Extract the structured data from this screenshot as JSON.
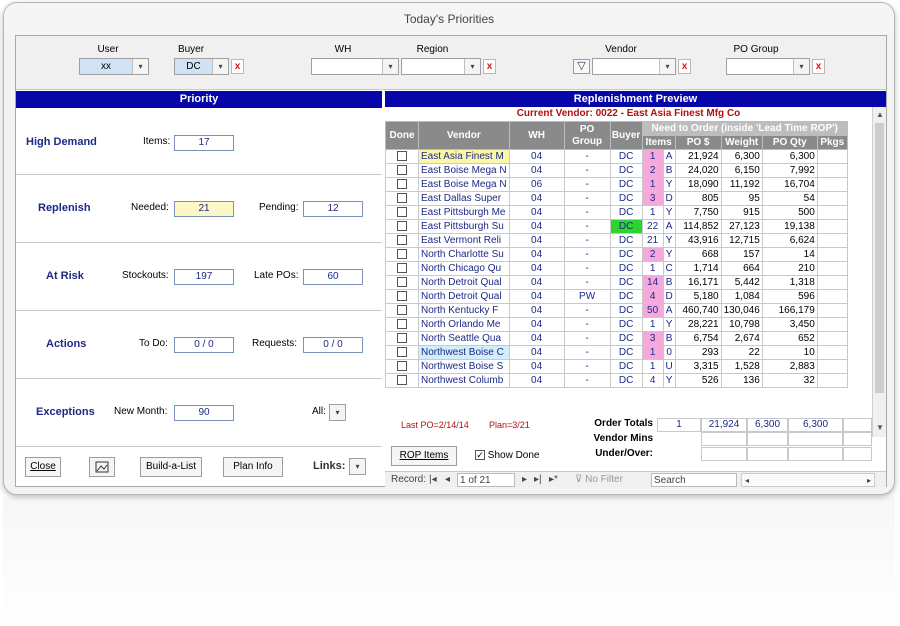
{
  "window": {
    "title": "Today's Priorities"
  },
  "filters": {
    "user": {
      "label": "User",
      "value": "xx"
    },
    "buyer": {
      "label": "Buyer",
      "value": "DC"
    },
    "wh": {
      "label": "WH",
      "value": ""
    },
    "region": {
      "label": "Region",
      "value": ""
    },
    "vendor": {
      "label": "Vendor",
      "value": ""
    },
    "po_group": {
      "label": "PO Group",
      "value": ""
    },
    "clear_glyph": "x",
    "dropdown_glyph": "▾",
    "filter_glyph": "▽"
  },
  "priority": {
    "header": "Priority",
    "high_demand": {
      "name": "High Demand",
      "items_label": "Items:",
      "items_value": "17"
    },
    "replenish": {
      "name": "Replenish",
      "needed_label": "Needed:",
      "needed_value": "21",
      "pending_label": "Pending:",
      "pending_value": "12"
    },
    "at_risk": {
      "name": "At Risk",
      "stockouts_label": "Stockouts:",
      "stockouts_value": "197",
      "late_label": "Late POs:",
      "late_value": "60"
    },
    "actions": {
      "name": "Actions",
      "todo_label": "To Do:",
      "todo_value": "0 / 0",
      "requests_label": "Requests:",
      "requests_value": "0 / 0"
    },
    "exceptions": {
      "name": "Exceptions",
      "newmonth_label": "New Month:",
      "newmonth_value": "90",
      "all_label": "All:"
    }
  },
  "buttons": {
    "close": "Close",
    "build": "Build-a-List",
    "plan": "Plan Info",
    "links": "Links:",
    "rop": "ROP Items",
    "show_done": "Show Done"
  },
  "preview": {
    "header": "Replenishment Preview",
    "current_vendor": "Current Vendor: 0022 - East Asia Finest Mfg Co",
    "columns": {
      "done": "Done",
      "vendor": "Vendor",
      "wh": "WH",
      "po_group": "PO Group",
      "buyer": "Buyer",
      "need_group": "Need to Order (inside 'Lead Time ROP')",
      "items": "Items",
      "po_dollars": "PO $",
      "weight": "Weight",
      "po_qty": "PO Qty",
      "pkgs": "Pkgs"
    },
    "rows": [
      {
        "vendor": "East Asia Finest M",
        "wh": "04",
        "pog": "-",
        "buyer": "DC",
        "items": "1",
        "code": "A",
        "po": "21,924",
        "weight": "6,300",
        "qty": "6,300",
        "highlight": "#fbf7a8",
        "buyer_color": "#ffffff"
      },
      {
        "vendor": "East Boise Mega N",
        "wh": "04",
        "pog": "-",
        "buyer": "DC",
        "items": "2",
        "code": "B",
        "po": "24,020",
        "weight": "6,150",
        "qty": "7,992",
        "highlight": "",
        "buyer_color": "#ffffff"
      },
      {
        "vendor": "East Boise Mega N",
        "wh": "06",
        "pog": "-",
        "buyer": "DC",
        "items": "1",
        "code": "Y",
        "po": "18,090",
        "weight": "11,192",
        "qty": "16,704",
        "highlight": "",
        "buyer_color": "#ffffff"
      },
      {
        "vendor": "East Dallas Super",
        "wh": "04",
        "pog": "-",
        "buyer": "DC",
        "items": "3",
        "code": "D",
        "po": "805",
        "weight": "95",
        "qty": "54",
        "highlight": "",
        "buyer_color": "#ffffff"
      },
      {
        "vendor": "East Pittsburgh Me",
        "wh": "04",
        "pog": "-",
        "buyer": "DC",
        "items": "1",
        "code": "Y",
        "po": "7,750",
        "weight": "915",
        "qty": "500",
        "highlight": "",
        "buyer_color": "#ffffff"
      },
      {
        "vendor": "East Pittsburgh Su",
        "wh": "04",
        "pog": "-",
        "buyer": "DC",
        "items": "22",
        "code": "A",
        "po": "114,852",
        "weight": "27,123",
        "qty": "19,138",
        "highlight": "",
        "buyer_color": "#2dd42d"
      },
      {
        "vendor": "East Vermont Reli",
        "wh": "04",
        "pog": "-",
        "buyer": "DC",
        "items": "21",
        "code": "Y",
        "po": "43,916",
        "weight": "12,715",
        "qty": "6,624",
        "highlight": "",
        "buyer_color": "#ffffff"
      },
      {
        "vendor": "North Charlotte Su",
        "wh": "04",
        "pog": "-",
        "buyer": "DC",
        "items": "2",
        "code": "Y",
        "po": "668",
        "weight": "157",
        "qty": "14",
        "highlight": "",
        "buyer_color": "#ffffff"
      },
      {
        "vendor": "North Chicago Qu",
        "wh": "04",
        "pog": "-",
        "buyer": "DC",
        "items": "1",
        "code": "C",
        "po": "1,714",
        "weight": "664",
        "qty": "210",
        "highlight": "",
        "buyer_color": "#ffffff"
      },
      {
        "vendor": "North Detroit Qual",
        "wh": "04",
        "pog": "-",
        "buyer": "DC",
        "items": "14",
        "code": "B",
        "po": "16,171",
        "weight": "5,442",
        "qty": "1,318",
        "highlight": "",
        "buyer_color": "#ffffff"
      },
      {
        "vendor": "North Detroit Qual",
        "wh": "04",
        "pog": "PW",
        "buyer": "DC",
        "items": "4",
        "code": "D",
        "po": "5,180",
        "weight": "1,084",
        "qty": "596",
        "highlight": "",
        "buyer_color": "#ffffff"
      },
      {
        "vendor": "North Kentucky F",
        "wh": "04",
        "pog": "-",
        "buyer": "DC",
        "items": "50",
        "code": "A",
        "po": "460,740",
        "weight": "130,046",
        "qty": "166,179",
        "highlight": "",
        "buyer_color": "#ffffff"
      },
      {
        "vendor": "North Orlando Me",
        "wh": "04",
        "pog": "-",
        "buyer": "DC",
        "items": "1",
        "code": "Y",
        "po": "28,221",
        "weight": "10,798",
        "qty": "3,450",
        "highlight": "",
        "buyer_color": "#ffffff"
      },
      {
        "vendor": "North Seattle Qua",
        "wh": "04",
        "pog": "-",
        "buyer": "DC",
        "items": "3",
        "code": "B",
        "po": "6,754",
        "weight": "2,674",
        "qty": "652",
        "highlight": "",
        "buyer_color": "#ffffff"
      },
      {
        "vendor": "Northwest Boise C",
        "wh": "04",
        "pog": "-",
        "buyer": "DC",
        "items": "1",
        "code": "0",
        "po": "293",
        "weight": "22",
        "qty": "10",
        "highlight": "#d2eefb",
        "buyer_color": "#ffffff"
      },
      {
        "vendor": "Northwest Boise S",
        "wh": "04",
        "pog": "-",
        "buyer": "DC",
        "items": "1",
        "code": "U",
        "po": "3,315",
        "weight": "1,528",
        "qty": "2,883",
        "highlight": "",
        "buyer_color": "#ffffff"
      },
      {
        "vendor": "Northwest Columb",
        "wh": "04",
        "pog": "-",
        "buyer": "DC",
        "items": "4",
        "code": "Y",
        "po": "526",
        "weight": "136",
        "qty": "32",
        "highlight": "",
        "buyer_color": "#ffffff"
      }
    ],
    "pink_items": [
      0,
      1,
      2,
      3,
      7,
      9,
      10,
      11,
      13,
      14
    ],
    "totals": {
      "label": "Order Totals",
      "items": "1",
      "po": "21,924",
      "weight": "6,300",
      "qty": "6,300",
      "vendor_mins": "Vendor Mins",
      "under_over": "Under/Over:"
    },
    "last_po": "Last PO=2/14/14",
    "plan": "Plan=3/21"
  },
  "nav": {
    "record_label": "Record:",
    "record_value": "1 of 21",
    "no_filter": "No Filter",
    "search": "Search"
  }
}
